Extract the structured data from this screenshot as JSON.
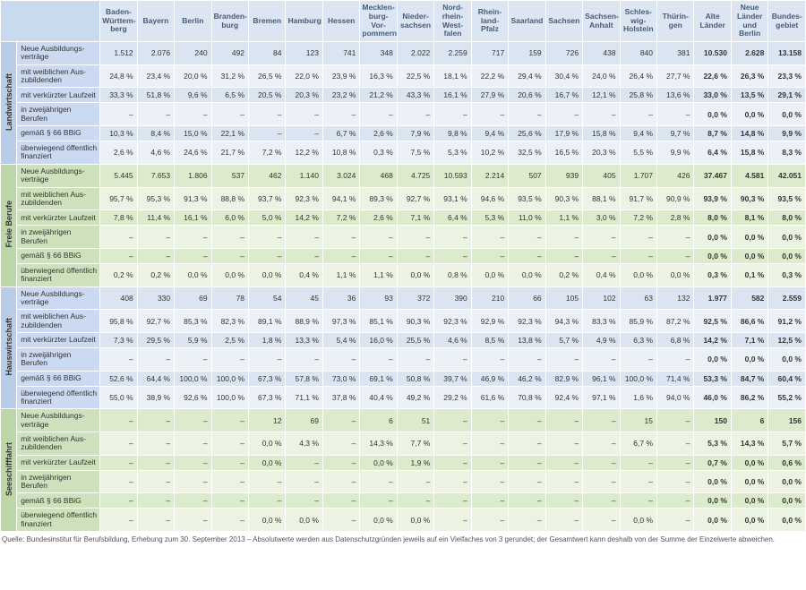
{
  "columns": [
    "Baden-Württem-berg",
    "Bayern",
    "Berlin",
    "Branden-burg",
    "Bremen",
    "Hamburg",
    "Hessen",
    "Mecklen-burg-Vor-pommern",
    "Nieder-sachsen",
    "Nord-rhein-West-falen",
    "Rhein-land-Pfalz",
    "Saarland",
    "Sachsen",
    "Sachsen-Anhalt",
    "Schles-wig-Holstein",
    "Thürin-gen",
    "Alte Länder",
    "Neue Länder und Berlin",
    "Bundes-gebiet"
  ],
  "rowLabels": [
    "Neue Ausbildungs-verträge",
    "mit weiblichen Aus-zubildenden",
    "mit verkürzter Laufzeit",
    "in zweijährigen Berufen",
    "gemäß § 66 BBiG",
    "überwiegend öffentlich finanziert"
  ],
  "sections": [
    {
      "name": "Landwirtschaft",
      "colors": {
        "group": "#b9cde8",
        "label": "#cbdaf0",
        "odd": "#dbe5f2",
        "even": "#ecf1f8"
      },
      "rows": [
        [
          "1.512",
          "2.076",
          "240",
          "492",
          "84",
          "123",
          "741",
          "348",
          "2.022",
          "2.259",
          "717",
          "159",
          "726",
          "438",
          "840",
          "381",
          "10.530",
          "2.628",
          "13.158"
        ],
        [
          "24,8 %",
          "23,4 %",
          "20,0 %",
          "31,2 %",
          "26,5 %",
          "22,0 %",
          "23,9 %",
          "16,3 %",
          "22,5 %",
          "18,1 %",
          "22,2 %",
          "29,4 %",
          "30,4 %",
          "24,0 %",
          "26,4 %",
          "27,7 %",
          "22,6 %",
          "26,3 %",
          "23,3 %"
        ],
        [
          "33,3 %",
          "51,8 %",
          "9,6 %",
          "6,5 %",
          "20,5 %",
          "20,3 %",
          "23,2 %",
          "21,2 %",
          "43,3 %",
          "16,1 %",
          "27,9 %",
          "20,6 %",
          "16,7 %",
          "12,1 %",
          "25,8 %",
          "13,6 %",
          "33,0 %",
          "13,5 %",
          "29,1 %"
        ],
        [
          "–",
          "–",
          "–",
          "–",
          "–",
          "–",
          "–",
          "–",
          "–",
          "–",
          "–",
          "–",
          "–",
          "–",
          "–",
          "–",
          "0,0 %",
          "0,0 %",
          "0,0 %"
        ],
        [
          "10,3 %",
          "8,4 %",
          "15,0 %",
          "22,1 %",
          "–",
          "–",
          "6,7 %",
          "2,6 %",
          "7,9 %",
          "9,8 %",
          "9,4 %",
          "25,6 %",
          "17,9 %",
          "15,8 %",
          "9,4 %",
          "9,7 %",
          "8,7 %",
          "14,8 %",
          "9,9 %"
        ],
        [
          "2,6 %",
          "4,6 %",
          "24,6 %",
          "21,7 %",
          "7,2 %",
          "12,2 %",
          "10,8 %",
          "0,3 %",
          "7,5 %",
          "5,3 %",
          "10,2 %",
          "32,5 %",
          "16,5 %",
          "20,3 %",
          "5,5 %",
          "9,9 %",
          "6,4 %",
          "15,8 %",
          "8,3 %"
        ]
      ]
    },
    {
      "name": "Freie Berufe",
      "colors": {
        "group": "#bcd6a8",
        "label": "#cde2bc",
        "odd": "#dcebcc",
        "even": "#ecf3e3"
      },
      "rows": [
        [
          "5.445",
          "7.653",
          "1.806",
          "537",
          "462",
          "1.140",
          "3.024",
          "468",
          "4.725",
          "10.593",
          "2.214",
          "507",
          "939",
          "405",
          "1.707",
          "426",
          "37.467",
          "4.581",
          "42.051"
        ],
        [
          "95,7 %",
          "95,3 %",
          "91,3 %",
          "88,8 %",
          "93,7 %",
          "92,3 %",
          "94,1 %",
          "89,3 %",
          "92,7 %",
          "93,1 %",
          "94,6 %",
          "93,5 %",
          "90,3 %",
          "88,1 %",
          "91,7 %",
          "90,9 %",
          "93,9 %",
          "90,3 %",
          "93,5 %"
        ],
        [
          "7,8 %",
          "11,4 %",
          "16,1 %",
          "6,0 %",
          "5,0 %",
          "14,2 %",
          "7,2 %",
          "2,6 %",
          "7,1 %",
          "6,4 %",
          "5,3 %",
          "11,0 %",
          "1,1 %",
          "3,0 %",
          "7,2 %",
          "2,8 %",
          "8,0 %",
          "8,1 %",
          "8,0 %"
        ],
        [
          "–",
          "–",
          "–",
          "–",
          "–",
          "–",
          "–",
          "–",
          "–",
          "–",
          "–",
          "–",
          "–",
          "–",
          "–",
          "–",
          "0,0 %",
          "0,0 %",
          "0,0 %"
        ],
        [
          "–",
          "–",
          "–",
          "–",
          "–",
          "–",
          "–",
          "–",
          "–",
          "–",
          "–",
          "–",
          "–",
          "–",
          "–",
          "–",
          "0,0 %",
          "0,0 %",
          "0,0 %"
        ],
        [
          "0,2 %",
          "0,2 %",
          "0,0 %",
          "0,0 %",
          "0,0 %",
          "0,4 %",
          "1,1 %",
          "1,1 %",
          "0,0 %",
          "0,8 %",
          "0,0 %",
          "0,0 %",
          "0,2 %",
          "0,4 %",
          "0,0 %",
          "0,0 %",
          "0,3 %",
          "0,1 %",
          "0,3 %"
        ]
      ]
    },
    {
      "name": "Hauswirtschaft",
      "colors": {
        "group": "#b9cde8",
        "label": "#cbdaf0",
        "odd": "#dbe5f2",
        "even": "#ecf1f8"
      },
      "rows": [
        [
          "408",
          "330",
          "69",
          "78",
          "54",
          "45",
          "36",
          "93",
          "372",
          "390",
          "210",
          "66",
          "105",
          "102",
          "63",
          "132",
          "1.977",
          "582",
          "2.559"
        ],
        [
          "95,8 %",
          "92,7 %",
          "85,3 %",
          "82,3 %",
          "89,1 %",
          "88,9 %",
          "97,3 %",
          "85,1 %",
          "90,3 %",
          "92,3 %",
          "92,9 %",
          "92,3 %",
          "94,3 %",
          "83,3 %",
          "85,9 %",
          "87,2 %",
          "92,5 %",
          "86,6 %",
          "91,2 %"
        ],
        [
          "7,3 %",
          "29,5 %",
          "5,9 %",
          "2,5 %",
          "1,8 %",
          "13,3 %",
          "5,4 %",
          "16,0 %",
          "25,5 %",
          "4,6 %",
          "8,5 %",
          "13,8 %",
          "5,7 %",
          "4,9 %",
          "6,3 %",
          "6,8 %",
          "14,2 %",
          "7,1 %",
          "12,5 %"
        ],
        [
          "–",
          "–",
          "–",
          "–",
          "–",
          "–",
          "–",
          "–",
          "–",
          "–",
          "–",
          "–",
          "–",
          "–",
          "–",
          "–",
          "0,0 %",
          "0,0 %",
          "0,0 %"
        ],
        [
          "52,6 %",
          "64,4 %",
          "100,0 %",
          "100,0 %",
          "67,3 %",
          "57,8 %",
          "73,0 %",
          "69,1 %",
          "50,8 %",
          "39,7 %",
          "46,9 %",
          "46,2 %",
          "82,9 %",
          "96,1 %",
          "100,0 %",
          "71,4 %",
          "53,3 %",
          "84,7 %",
          "60,4 %"
        ],
        [
          "55,0 %",
          "38,9 %",
          "92,6 %",
          "100,0 %",
          "67,3 %",
          "71,1 %",
          "37,8 %",
          "40,4 %",
          "49,2 %",
          "29,2 %",
          "61,6 %",
          "70,8 %",
          "92,4 %",
          "97,1 %",
          "1,6 %",
          "94,0 %",
          "46,0 %",
          "86,2 %",
          "55,2 %"
        ]
      ]
    },
    {
      "name": "Seeschifffahrt",
      "colors": {
        "group": "#bcd6a8",
        "label": "#cde2bc",
        "odd": "#dcebcc",
        "even": "#ecf3e3"
      },
      "rows": [
        [
          "–",
          "–",
          "–",
          "–",
          "12",
          "69",
          "–",
          "6",
          "51",
          "–",
          "–",
          "–",
          "–",
          "–",
          "15",
          "–",
          "150",
          "6",
          "156"
        ],
        [
          "–",
          "–",
          "–",
          "–",
          "0,0 %",
          "4,3 %",
          "–",
          "14,3 %",
          "7,7 %",
          "–",
          "–",
          "–",
          "–",
          "–",
          "6,7 %",
          "–",
          "5,3 %",
          "14,3 %",
          "5,7 %"
        ],
        [
          "–",
          "–",
          "–",
          "–",
          "0,0 %",
          "–",
          "–",
          "0,0 %",
          "1,9 %",
          "–",
          "–",
          "–",
          "–",
          "–",
          "–",
          "–",
          "0,7 %",
          "0,0 %",
          "0,6 %"
        ],
        [
          "–",
          "–",
          "–",
          "–",
          "–",
          "–",
          "–",
          "–",
          "–",
          "–",
          "–",
          "–",
          "–",
          "–",
          "–",
          "–",
          "0,0 %",
          "0,0 %",
          "0,0 %"
        ],
        [
          "–",
          "–",
          "–",
          "–",
          "–",
          "–",
          "–",
          "–",
          "–",
          "–",
          "–",
          "–",
          "–",
          "–",
          "–",
          "–",
          "0,0 %",
          "0,0 %",
          "0,0 %"
        ],
        [
          "–",
          "–",
          "–",
          "–",
          "0,0 %",
          "0,0 %",
          "–",
          "0,0 %",
          "0,0 %",
          "–",
          "–",
          "–",
          "–",
          "–",
          "0,0 %",
          "–",
          "0,0 %",
          "0,0 %",
          "0,0 %"
        ]
      ]
    }
  ],
  "footnote": "Quelle: Bundesinstitut für Berufsbildung, Erhebung zum 30. September 2013 – Absolutwerte werden aus Datenschutzgründen jeweils auf ein Vielfaches von 3 gerundet; der Gesamtwert kann deshalb von der Summe der Einzelwerte abweichen."
}
